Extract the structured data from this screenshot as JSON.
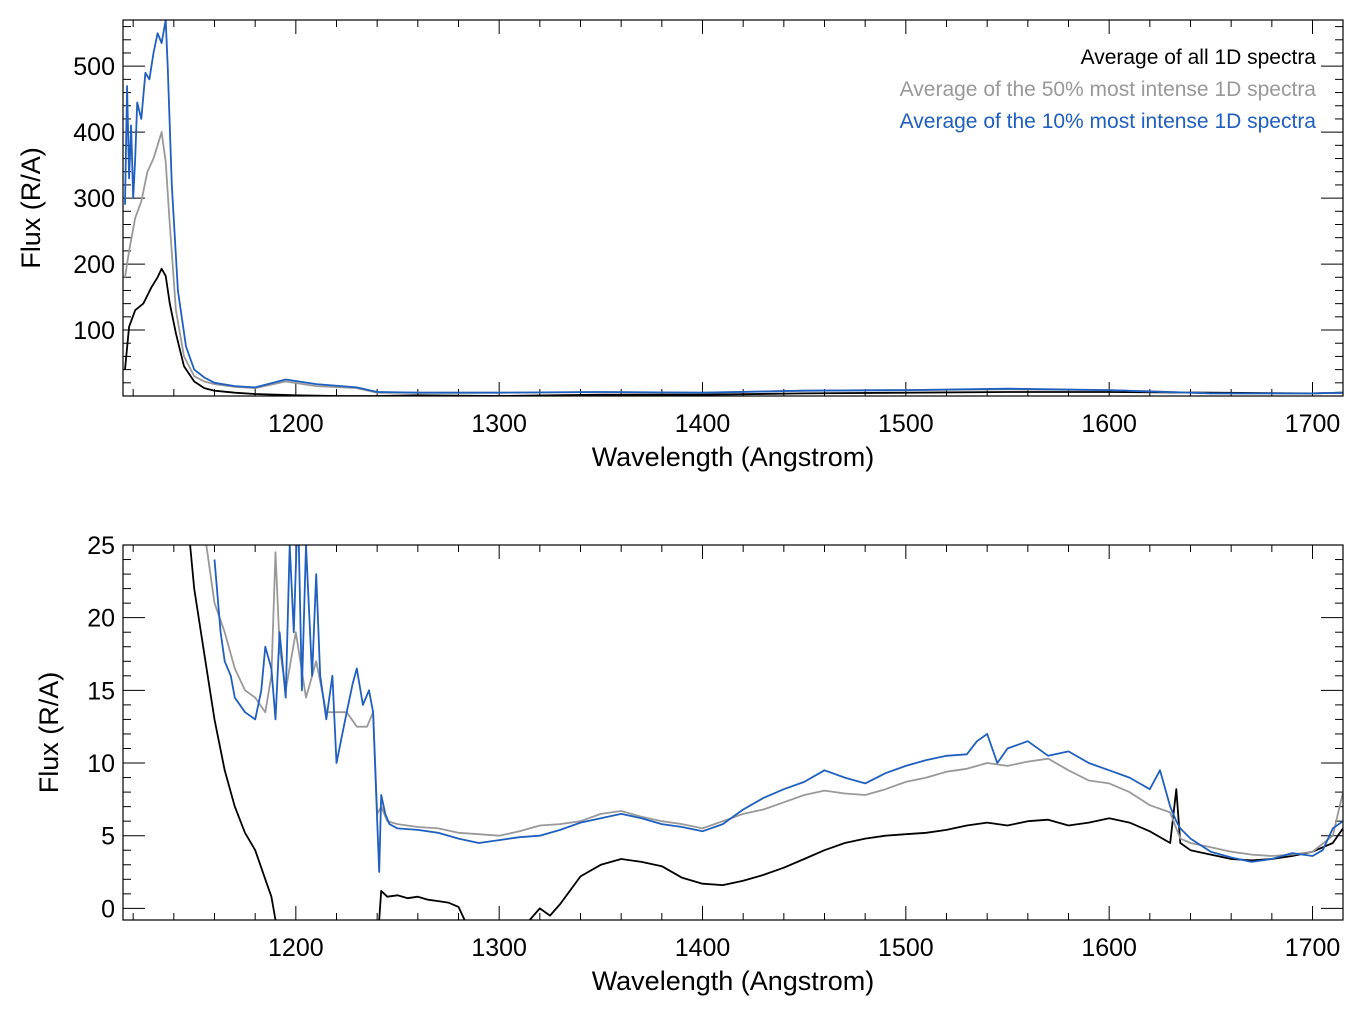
{
  "chart_data": [
    {
      "type": "line",
      "xlabel": "Wavelength (Angstrom)",
      "ylabel": "Flux (R/A)",
      "xlim": [
        1115,
        1715
      ],
      "ylim": [
        0,
        570
      ],
      "xticks": [
        1200,
        1300,
        1400,
        1500,
        1600,
        1700
      ],
      "yticks": [
        100,
        200,
        300,
        400,
        500
      ],
      "grid": false,
      "legend": "top-right",
      "series": [
        {
          "name": "Average of all 1D spectra",
          "color": "#000000",
          "x": [
            1116,
            1118,
            1121,
            1125,
            1129,
            1132,
            1134,
            1136,
            1138,
            1141,
            1145,
            1150,
            1155,
            1160,
            1170,
            1180,
            1190,
            1200,
            1220,
            1240,
            1260,
            1300,
            1350,
            1400,
            1450,
            1500,
            1550,
            1600,
            1650,
            1700,
            1715
          ],
          "y": [
            40,
            105,
            130,
            140,
            165,
            180,
            193,
            182,
            140,
            95,
            45,
            22,
            12,
            8,
            5,
            3,
            2,
            1,
            0,
            0,
            1,
            0,
            2,
            2,
            4,
            5,
            6,
            6,
            5,
            4,
            5
          ]
        },
        {
          "name": "Average of the 50% most intense 1D spectra",
          "color": "#999999",
          "x": [
            1116,
            1118,
            1121,
            1124,
            1127,
            1130,
            1132,
            1134,
            1136,
            1138,
            1141,
            1145,
            1150,
            1155,
            1160,
            1170,
            1180,
            1195,
            1210,
            1230,
            1240,
            1260,
            1300,
            1350,
            1400,
            1450,
            1500,
            1550,
            1600,
            1650,
            1700,
            1715
          ],
          "y": [
            180,
            220,
            270,
            295,
            340,
            360,
            380,
            400,
            355,
            260,
            130,
            60,
            30,
            22,
            18,
            14,
            12,
            22,
            15,
            12,
            5,
            5,
            5,
            6,
            5,
            8,
            9,
            10,
            9,
            4,
            4,
            5
          ]
        },
        {
          "name": "Average of the 10% most intense 1D spectra",
          "color": "#1f5fbf",
          "x": [
            1116,
            1117,
            1118,
            1119,
            1120,
            1121,
            1122,
            1124,
            1126,
            1128,
            1130,
            1132,
            1134,
            1136,
            1137,
            1139,
            1142,
            1146,
            1150,
            1155,
            1160,
            1170,
            1180,
            1195,
            1210,
            1230,
            1240,
            1260,
            1300,
            1350,
            1400,
            1450,
            1500,
            1550,
            1600,
            1650,
            1700,
            1715
          ],
          "y": [
            290,
            470,
            330,
            410,
            300,
            360,
            445,
            420,
            490,
            480,
            520,
            550,
            535,
            570,
            500,
            320,
            160,
            75,
            40,
            28,
            20,
            15,
            13,
            25,
            18,
            13,
            6,
            5,
            5,
            6,
            5,
            8,
            9,
            11,
            9,
            4,
            4,
            5
          ]
        }
      ]
    },
    {
      "type": "line",
      "xlabel": "Wavelength (Angstrom)",
      "ylabel": "Flux (R/A)",
      "xlim": [
        1115,
        1715
      ],
      "ylim": [
        -0.8,
        25
      ],
      "xticks": [
        1200,
        1300,
        1400,
        1500,
        1600,
        1700
      ],
      "yticks": [
        0,
        5,
        10,
        15,
        20,
        25
      ],
      "grid": false,
      "series": [
        {
          "color": "#000000",
          "segments": [
            {
              "x": [
                1146,
                1150,
                1155,
                1160,
                1165,
                1170,
                1175,
                1180,
                1185,
                1188,
                1190
              ],
              "y": [
                28,
                22,
                17.5,
                13,
                9.5,
                7,
                5.2,
                4,
                2,
                0.8,
                -0.8
              ]
            },
            {
              "x": [
                1241,
                1242,
                1245,
                1250,
                1255,
                1260,
                1265,
                1270,
                1275,
                1280,
                1283
              ],
              "y": [
                -0.8,
                1.2,
                0.8,
                0.9,
                0.7,
                0.8,
                0.6,
                0.5,
                0.4,
                0.1,
                -0.8
              ]
            },
            {
              "x": [
                1315,
                1320,
                1325,
                1330,
                1340,
                1350,
                1360,
                1370,
                1380,
                1390,
                1400,
                1410,
                1420,
                1430,
                1440,
                1450,
                1460,
                1470,
                1480,
                1490,
                1500,
                1510,
                1520,
                1530,
                1540,
                1550,
                1560,
                1570,
                1580,
                1590,
                1600,
                1610,
                1620,
                1630,
                1633,
                1635,
                1640,
                1650,
                1660,
                1670,
                1680,
                1690,
                1700,
                1710,
                1715
              ],
              "y": [
                -0.8,
                0,
                -0.5,
                0.3,
                2.2,
                3.0,
                3.4,
                3.2,
                2.9,
                2.1,
                1.7,
                1.6,
                1.9,
                2.3,
                2.8,
                3.4,
                4.0,
                4.5,
                4.8,
                5.0,
                5.1,
                5.2,
                5.4,
                5.7,
                5.9,
                5.7,
                6.0,
                6.1,
                5.7,
                5.9,
                6.2,
                5.9,
                5.3,
                4.5,
                8.2,
                4.5,
                4.0,
                3.7,
                3.4,
                3.3,
                3.4,
                3.6,
                3.9,
                4.5,
                5.5
              ]
            }
          ]
        },
        {
          "color": "#999999",
          "segments": [
            {
              "x": [
                1155,
                1160,
                1165,
                1170,
                1175,
                1180,
                1185,
                1188,
                1190,
                1192,
                1195,
                1200,
                1205,
                1210,
                1215,
                1220,
                1225,
                1230,
                1235,
                1238,
                1240,
                1242,
                1245,
                1250,
                1260,
                1270,
                1280,
                1290,
                1300,
                1310,
                1320,
                1330,
                1340,
                1350,
                1360,
                1370,
                1380,
                1390,
                1400,
                1410,
                1420,
                1430,
                1440,
                1450,
                1460,
                1470,
                1480,
                1490,
                1500,
                1510,
                1520,
                1530,
                1540,
                1550,
                1560,
                1570,
                1580,
                1590,
                1600,
                1610,
                1620,
                1630,
                1633,
                1635,
                1640,
                1650,
                1660,
                1670,
                1680,
                1690,
                1700,
                1710,
                1715
              ],
              "y": [
                26,
                21,
                19,
                16.5,
                15,
                14.5,
                13.5,
                16,
                24.5,
                18,
                15,
                19,
                14.5,
                17,
                13.5,
                13.5,
                13.5,
                12.5,
                12.5,
                13.5,
                6.5,
                7,
                6,
                5.8,
                5.6,
                5.5,
                5.2,
                5.1,
                5.0,
                5.3,
                5.7,
                5.8,
                6.0,
                6.5,
                6.7,
                6.3,
                6.0,
                5.8,
                5.5,
                6.0,
                6.5,
                6.8,
                7.3,
                7.8,
                8.1,
                7.9,
                7.8,
                8.2,
                8.7,
                9.0,
                9.4,
                9.6,
                10.0,
                9.8,
                10.1,
                10.3,
                9.5,
                8.8,
                8.6,
                8.0,
                7.1,
                6.6,
                5.5,
                4.8,
                4.5,
                4.2,
                3.9,
                3.7,
                3.6,
                3.7,
                3.9,
                5.0,
                8.0
              ]
            }
          ]
        },
        {
          "color": "#1f5fbf",
          "segments": [
            {
              "x": [
                1160,
                1163,
                1165,
                1168,
                1170,
                1175,
                1180,
                1183,
                1185,
                1188,
                1190,
                1192,
                1195,
                1197,
                1199,
                1201,
                1203,
                1205,
                1208,
                1210,
                1212,
                1215,
                1218,
                1220,
                1225,
                1228,
                1230,
                1233,
                1236,
                1238,
                1240,
                1241,
                1242,
                1244,
                1246,
                1250,
                1260,
                1270,
                1280,
                1290,
                1300,
                1310,
                1320,
                1330,
                1340,
                1350,
                1360,
                1370,
                1380,
                1390,
                1400,
                1410,
                1420,
                1430,
                1440,
                1450,
                1460,
                1470,
                1480,
                1490,
                1500,
                1510,
                1520,
                1530,
                1535,
                1540,
                1545,
                1550,
                1560,
                1570,
                1580,
                1590,
                1600,
                1610,
                1620,
                1625,
                1630,
                1633,
                1635,
                1640,
                1650,
                1660,
                1670,
                1680,
                1690,
                1700,
                1705,
                1710,
                1715
              ],
              "y": [
                24,
                19,
                17,
                16,
                14.5,
                13.5,
                13,
                15,
                18,
                16.5,
                13,
                19,
                14.5,
                25,
                19,
                28,
                15,
                25,
                16,
                23,
                16,
                13,
                16,
                10,
                13.5,
                15.5,
                16.5,
                14,
                15,
                13.5,
                6,
                2.5,
                7.8,
                6.5,
                5.8,
                5.5,
                5.4,
                5.2,
                4.8,
                4.5,
                4.7,
                4.9,
                5.0,
                5.4,
                5.9,
                6.2,
                6.5,
                6.2,
                5.8,
                5.6,
                5.3,
                5.8,
                6.8,
                7.6,
                8.2,
                8.7,
                9.5,
                9.0,
                8.6,
                9.3,
                9.8,
                10.2,
                10.5,
                10.6,
                11.5,
                12.0,
                10.0,
                11.0,
                11.5,
                10.5,
                10.8,
                10.0,
                9.5,
                9.0,
                8.2,
                9.5,
                7.0,
                6.0,
                5.5,
                4.8,
                3.9,
                3.5,
                3.2,
                3.4,
                3.8,
                3.6,
                4.0,
                5.5,
                6.0
              ]
            }
          ]
        }
      ]
    }
  ]
}
